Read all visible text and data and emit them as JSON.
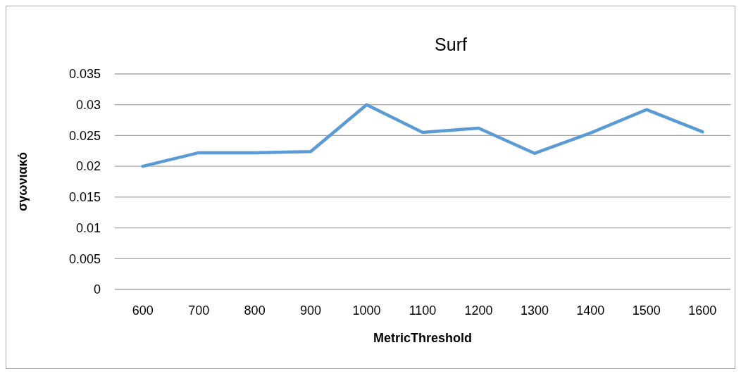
{
  "chart_data": {
    "type": "line",
    "title": "Surf",
    "xlabel": "MetricThreshold",
    "ylabel": "σγωνιακό",
    "categories": [
      "600",
      "700",
      "800",
      "900",
      "1000",
      "1100",
      "1200",
      "1300",
      "1400",
      "1500",
      "1600"
    ],
    "series": [
      {
        "color": "#5b9bd5",
        "values": [
          0.02,
          0.0222,
          0.0222,
          0.0224,
          0.03,
          0.0255,
          0.0262,
          0.0221,
          0.0254,
          0.0292,
          0.0256
        ]
      }
    ],
    "ylim": [
      0,
      0.035
    ],
    "yticks": [
      0,
      0.005,
      0.01,
      0.015,
      0.02,
      0.025,
      0.03,
      0.035
    ],
    "grid": "y",
    "marker": "none",
    "line_style": "solid"
  }
}
